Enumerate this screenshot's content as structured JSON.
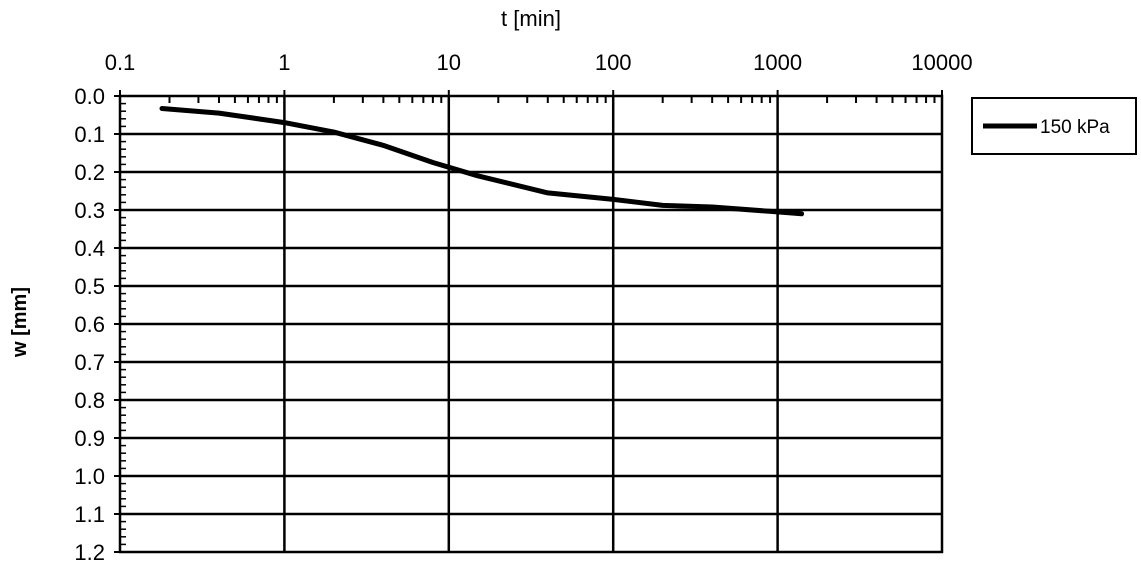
{
  "chart_data": {
    "type": "line",
    "xlabel": "t [min]",
    "ylabel": "w [mm]",
    "x_scale": "log",
    "xlim": [
      0.1,
      10000
    ],
    "ylim": [
      0.0,
      1.2
    ],
    "y_inverted": true,
    "x_position": "top",
    "grid": true,
    "legend_position": "right",
    "x_tick_labels": [
      "0.1",
      "1",
      "10",
      "100",
      "1000",
      "10000"
    ],
    "y_tick_labels": [
      "0.0",
      "0.1",
      "0.2",
      "0.3",
      "0.4",
      "0.5",
      "0.6",
      "0.7",
      "0.8",
      "0.9",
      "1.0",
      "1.1",
      "1.2"
    ],
    "series": [
      {
        "name": "150 kPa",
        "color": "#000000",
        "x": [
          0.18,
          0.4,
          1.0,
          2.0,
          4.0,
          8.0,
          15,
          40,
          100,
          200,
          400,
          1000,
          1400
        ],
        "y": [
          0.033,
          0.045,
          0.07,
          0.095,
          0.13,
          0.175,
          0.21,
          0.255,
          0.272,
          0.288,
          0.292,
          0.305,
          0.31
        ]
      }
    ]
  }
}
